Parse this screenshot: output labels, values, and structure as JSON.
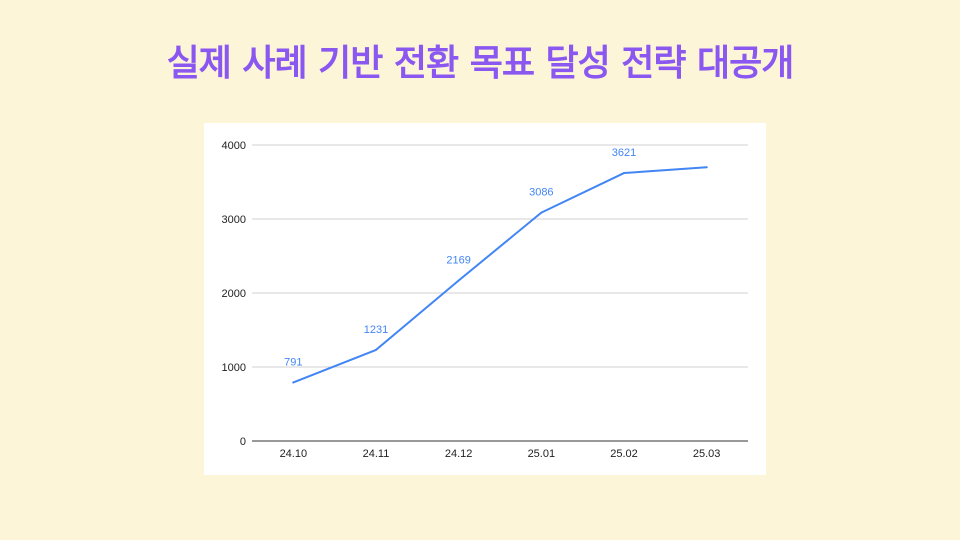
{
  "slide": {
    "title": "실제 사례 기반 전환 목표 달성 전략 대공개"
  },
  "colors": {
    "background": "#fdf5d8",
    "title": "#8a57f0",
    "line": "#4285f4",
    "grid": "#d0d0d0",
    "axis": "#333333"
  },
  "chart_data": {
    "type": "line",
    "title": "",
    "xlabel": "",
    "ylabel": "",
    "categories": [
      "24.10",
      "24.11",
      "24.12",
      "25.01",
      "25.02",
      "25.03"
    ],
    "series": [
      {
        "values": [
          791,
          1231,
          2169,
          3086,
          3621,
          3700
        ],
        "labels": [
          "791",
          "1231",
          "2169",
          "3086",
          "3621",
          ""
        ]
      }
    ],
    "ylim": [
      0,
      4000
    ],
    "yticks": [
      0,
      1000,
      2000,
      3000,
      4000
    ],
    "grid": true,
    "legend": "none"
  }
}
